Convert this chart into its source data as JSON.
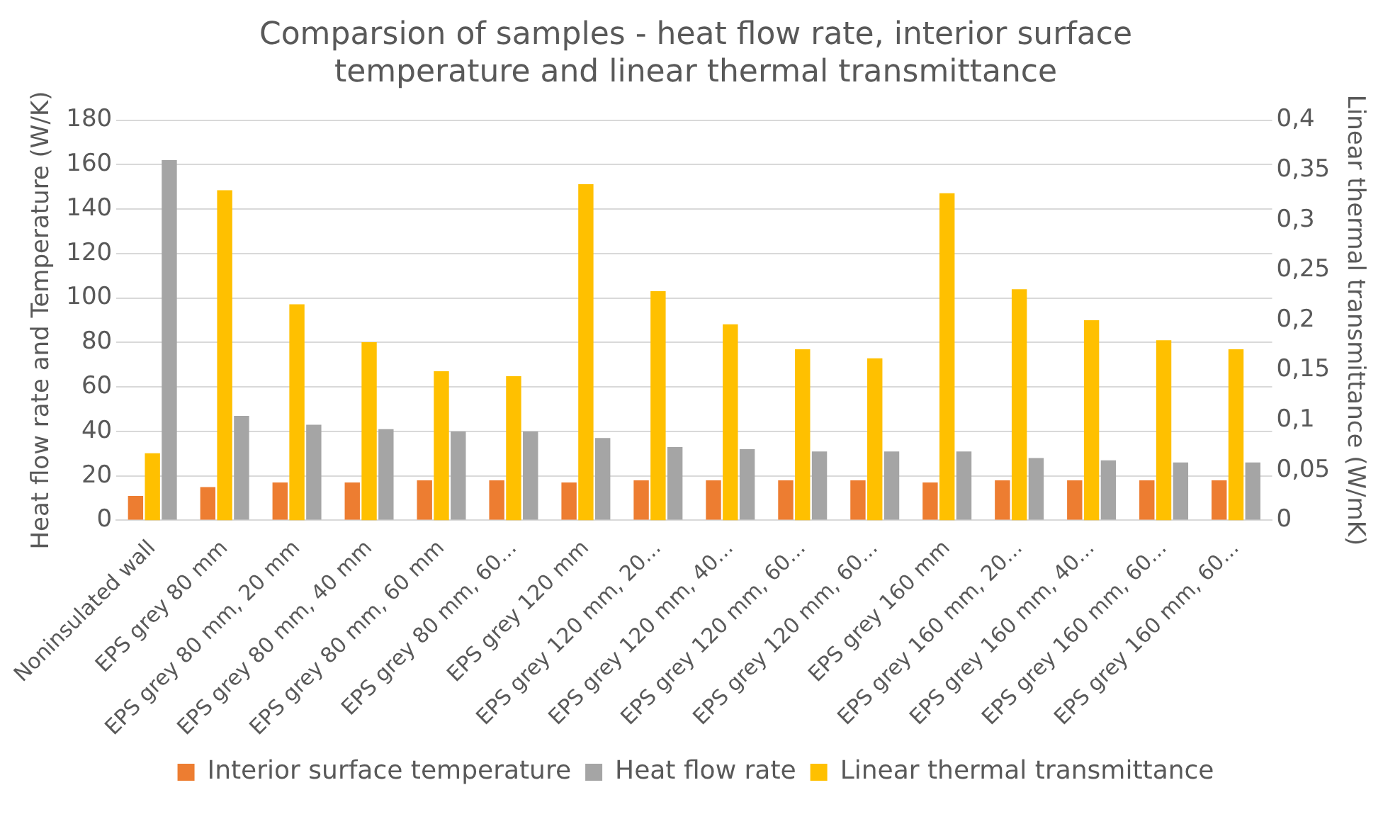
{
  "chart_data": {
    "type": "bar",
    "title": "Comparsion of samples - heat flow rate, interior surface temperature and linear thermal transmittance",
    "ylabel": "Heat flow rate and Temperature (W/K)",
    "y2label": "Linear thermal transmittance (W/mK)",
    "categories": [
      "Noninsulated wall",
      "EPS grey 80 mm",
      "EPS grey 80 mm, 20 mm",
      "EPS grey 80 mm, 40 mm",
      "EPS grey 80 mm, 60 mm",
      "EPS grey 80 mm, 60...",
      "EPS grey 120 mm",
      "EPS grey 120 mm, 20...",
      "EPS grey 120 mm, 40...",
      "EPS grey 120 mm, 60...",
      "EPS grey 120 mm, 60...",
      "EPS grey 160 mm",
      "EPS grey 160 mm, 20...",
      "EPS grey 160 mm, 40...",
      "EPS grey 160 mm, 60...",
      "EPS grey 160 mm, 60..."
    ],
    "series": [
      {
        "name": "Interior surface temperature",
        "color": "#ed7d31",
        "values": [
          11,
          15,
          17,
          17,
          18,
          18,
          17,
          18,
          18,
          18,
          18,
          17,
          18,
          18,
          18,
          18
        ]
      },
      {
        "name": "Heat flow rate",
        "color": "#a5a5a5",
        "values": [
          162,
          47,
          43,
          41,
          40,
          40,
          37,
          33,
          32,
          31,
          31,
          31,
          28,
          27,
          26,
          26
        ]
      },
      {
        "name": "Linear thermal transmittance",
        "color": "#ffc000",
        "axis": "y2",
        "values": [
          0.067,
          0.33,
          0.216,
          0.178,
          0.149,
          0.144,
          0.336,
          0.229,
          0.196,
          0.171,
          0.162,
          0.327,
          0.231,
          0.2,
          0.18,
          0.171
        ]
      }
    ],
    "ylim": [
      0,
      180
    ],
    "yticks": [
      0,
      20,
      40,
      60,
      80,
      100,
      120,
      140,
      160,
      180
    ],
    "y2lim": [
      0,
      0.4
    ],
    "y2ticks": [
      0,
      {
        "value": 0.05,
        "label": "0,05"
      },
      {
        "value": 0.1,
        "label": "0,1"
      },
      {
        "value": 0.15,
        "label": "0,15"
      },
      {
        "value": 0.2,
        "label": "0,2"
      },
      {
        "value": 0.25,
        "label": "0,25"
      },
      {
        "value": 0.3,
        "label": "0,3"
      },
      {
        "value": 0.35,
        "label": "0,35"
      },
      {
        "value": 0.4,
        "label": "0,4"
      }
    ],
    "grid": "y",
    "legend": "bottom"
  }
}
